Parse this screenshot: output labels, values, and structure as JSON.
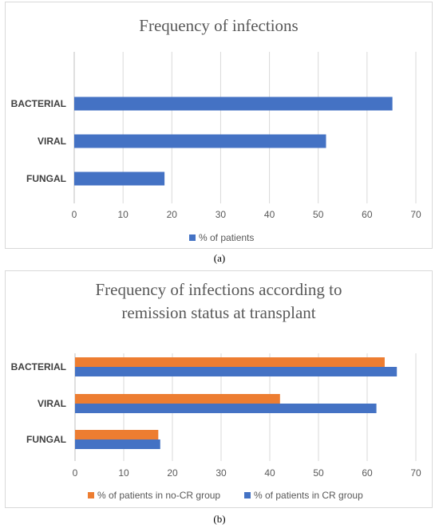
{
  "captions": [
    "(a)",
    "(b)"
  ],
  "chart_data": [
    {
      "type": "bar",
      "orientation": "horizontal",
      "title": "Frequency of infections",
      "categories": [
        "BACTERIAL",
        "VIRAL",
        "FUNGAL"
      ],
      "series": [
        {
          "name": "% of patients",
          "color": "#4472c4",
          "values": [
            65.2,
            51.6,
            18.5
          ]
        }
      ],
      "xlim": [
        0,
        70
      ],
      "xticks": [
        0,
        10,
        20,
        30,
        40,
        50,
        60,
        70
      ],
      "grid": "vertical",
      "legend": "bottom"
    },
    {
      "type": "bar",
      "orientation": "horizontal",
      "title": "Frequency of infections according to remission status at transplant",
      "title_lines": [
        "Frequency of infections according to",
        "remission status at transplant"
      ],
      "categories": [
        "BACTERIAL",
        "VIRAL",
        "FUNGAL"
      ],
      "series": [
        {
          "name": "% of patients in no-CR group",
          "color": "#ed7d31",
          "values": [
            63.6,
            42.1,
            17.1
          ]
        },
        {
          "name": "% of patients in CR group",
          "color": "#4472c4",
          "values": [
            66.1,
            61.9,
            17.5
          ]
        }
      ],
      "xlim": [
        0,
        70
      ],
      "xticks": [
        0,
        10,
        20,
        30,
        40,
        50,
        60,
        70
      ],
      "grid": "vertical",
      "legend": "bottom"
    }
  ]
}
